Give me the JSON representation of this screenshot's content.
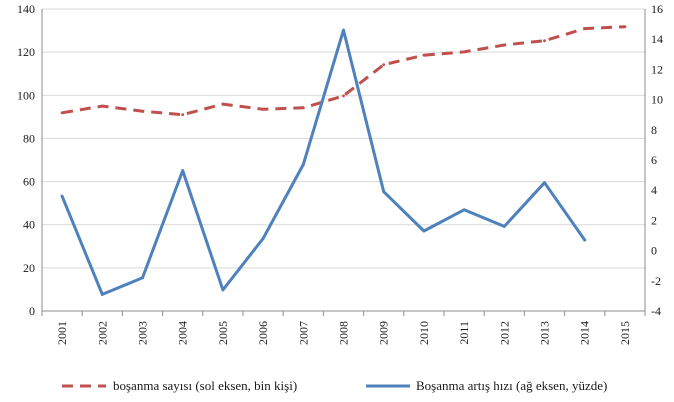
{
  "chart_data": {
    "type": "line",
    "categories": [
      "2001",
      "2002",
      "2003",
      "2004",
      "2005",
      "2006",
      "2007",
      "2008",
      "2009",
      "2010",
      "2011",
      "2012",
      "2013",
      "2014",
      "2015"
    ],
    "y_left": {
      "min": 0,
      "max": 140,
      "ticks": [
        0,
        20,
        40,
        60,
        80,
        100,
        120,
        140
      ]
    },
    "y_right": {
      "min": -4,
      "max": 16,
      "ticks": [
        -4,
        -2,
        0,
        2,
        4,
        6,
        8,
        10,
        12,
        14,
        16
      ]
    },
    "grid": "horizontal",
    "legend_position": "bottom",
    "series": [
      {
        "name": "boşanma sayısı (sol eksen, bin kişi)",
        "axis": "left",
        "style": "dashed",
        "color": "#c0504d",
        "values": [
          91.9,
          95.0,
          92.6,
          91.0,
          95.9,
          93.5,
          94.2,
          99.7,
          114.2,
          118.6,
          120.1,
          123.3,
          125.3,
          130.9,
          131.8
        ]
      },
      {
        "name": "Boşanma artış hızı (ağ eksen, yüzde)",
        "axis": "right",
        "style": "solid",
        "color": "#4f81bd",
        "values": [
          3.6,
          -2.9,
          -1.8,
          5.3,
          -2.6,
          0.8,
          5.7,
          14.6,
          3.9,
          1.3,
          2.7,
          1.6,
          4.5,
          0.7,
          null
        ]
      }
    ]
  }
}
